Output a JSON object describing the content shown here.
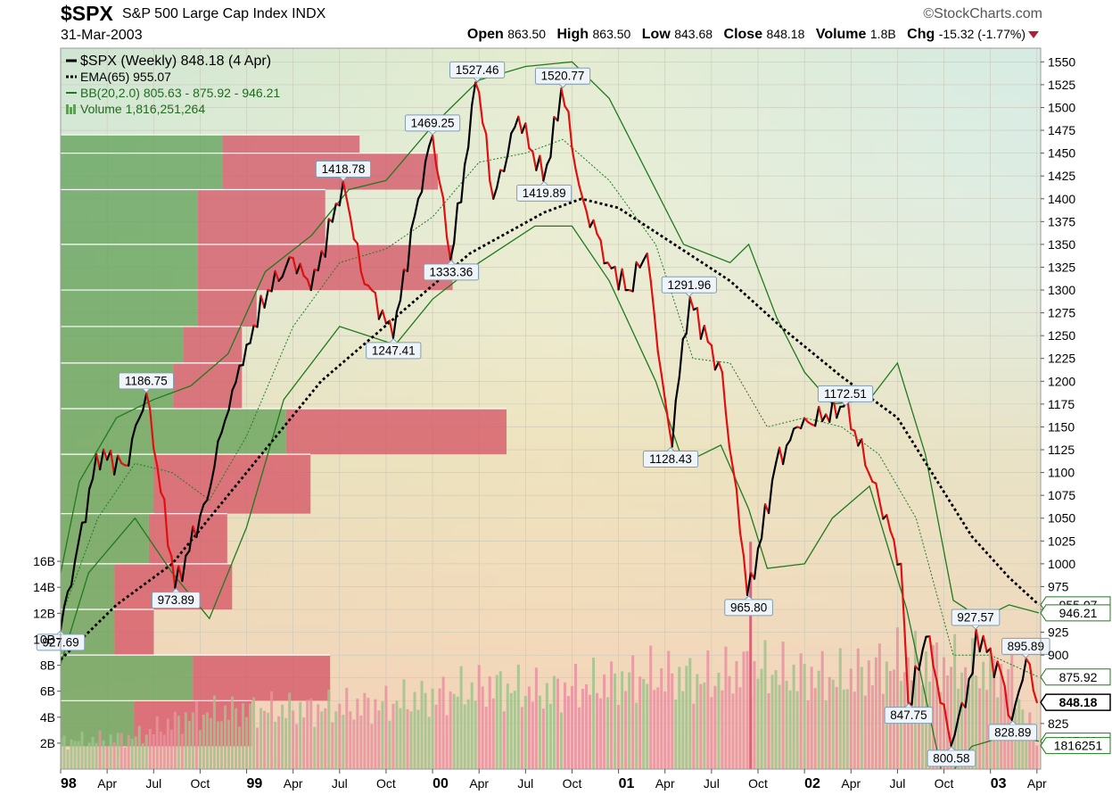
{
  "header": {
    "symbol": "$SPX",
    "name": "S&P 500 Large Cap Index",
    "exchange": "INDX",
    "date": "31-Mar-2003",
    "brand": "©StockCharts.com",
    "open_label": "Open",
    "open": "863.50",
    "high_label": "High",
    "high": "863.50",
    "low_label": "Low",
    "low": "843.68",
    "close_label": "Close",
    "close": "848.18",
    "volume_label": "Volume",
    "volume": "1.8B",
    "chg_label": "Chg",
    "chg": "-15.32 (-1.77%)"
  },
  "legend": [
    "$SPX (Weekly) 848.18 (4 Apr)",
    "EMA(65) 955.07",
    "BB(20,2.0) 805.63 - 875.92 - 946.21",
    "Volume 1,816,251,264"
  ],
  "colors": {
    "up": "#000000",
    "down": "#e01010",
    "ema": "#000000",
    "bands": "#1f7a1f",
    "vbp_up": "#5f9f55",
    "vbp_down": "#d45063",
    "bg_top_left": "#c8e2cc",
    "bg_top_right": "#d5e8de",
    "bg_bottom": "#f5d5b5"
  },
  "chart_data": {
    "type": "line",
    "title": "$SPX S&P 500 Large Cap Index (Weekly)",
    "y_axis": {
      "min": 775,
      "max": 1565,
      "ticks": [
        825,
        850,
        875,
        900,
        925,
        950,
        975,
        1000,
        1025,
        1050,
        1075,
        1100,
        1125,
        1150,
        1175,
        1200,
        1225,
        1250,
        1275,
        1300,
        1325,
        1350,
        1375,
        1400,
        1425,
        1450,
        1475,
        1500,
        1525,
        1550
      ],
      "labels": [
        "825",
        "850",
        "875",
        "900",
        "925",
        "950",
        "975",
        "1000",
        "1025",
        "1050",
        "1075",
        "1100",
        "1125",
        "1150",
        "1175",
        "1200",
        "1225",
        "1250",
        "1275",
        "1300",
        "1325",
        "1350",
        "1375",
        "1400",
        "1425",
        "1450",
        "1475",
        "1500",
        "1525",
        "1550"
      ]
    },
    "volume_axis": {
      "min": 0,
      "max": 18,
      "ticks": [
        2,
        4,
        6,
        8,
        10,
        12,
        14,
        16
      ],
      "labels": [
        "2B",
        "4B",
        "6B",
        "8B",
        "10B",
        "12B",
        "14B",
        "16B"
      ]
    },
    "x_axis": {
      "start": 1998.0,
      "end": 2003.27,
      "ticks": [
        {
          "x": 1998.0,
          "label": "98",
          "bold": true
        },
        {
          "x": 1998.25,
          "label": "Apr"
        },
        {
          "x": 1998.5,
          "label": "Jul"
        },
        {
          "x": 1998.75,
          "label": "Oct"
        },
        {
          "x": 1999.0,
          "label": "99",
          "bold": true
        },
        {
          "x": 1999.25,
          "label": "Apr"
        },
        {
          "x": 1999.5,
          "label": "Jul"
        },
        {
          "x": 1999.75,
          "label": "Oct"
        },
        {
          "x": 2000.0,
          "label": "00",
          "bold": true
        },
        {
          "x": 2000.25,
          "label": "Apr"
        },
        {
          "x": 2000.5,
          "label": "Jul"
        },
        {
          "x": 2000.75,
          "label": "Oct"
        },
        {
          "x": 2001.0,
          "label": "01",
          "bold": true
        },
        {
          "x": 2001.25,
          "label": "Apr"
        },
        {
          "x": 2001.5,
          "label": "Jul"
        },
        {
          "x": 2001.75,
          "label": "Oct"
        },
        {
          "x": 2002.0,
          "label": "02",
          "bold": true
        },
        {
          "x": 2002.25,
          "label": "Apr"
        },
        {
          "x": 2002.5,
          "label": "Jul"
        },
        {
          "x": 2002.75,
          "label": "Oct"
        },
        {
          "x": 2003.0,
          "label": "03",
          "bold": true
        },
        {
          "x": 2003.25,
          "label": "Apr"
        }
      ]
    },
    "price_pivots": [
      [
        1998.0,
        927.69
      ],
      [
        1998.12,
        1045
      ],
      [
        1998.2,
        1120
      ],
      [
        1998.35,
        1108
      ],
      [
        1998.46,
        1186.75
      ],
      [
        1998.62,
        973.89
      ],
      [
        1998.78,
        1070
      ],
      [
        1998.92,
        1190
      ],
      [
        1999.0,
        1240
      ],
      [
        1999.12,
        1300
      ],
      [
        1999.25,
        1335
      ],
      [
        1999.35,
        1300
      ],
      [
        1999.52,
        1418.78
      ],
      [
        1999.62,
        1320
      ],
      [
        1999.79,
        1247.41
      ],
      [
        1999.92,
        1400
      ],
      [
        2000.0,
        1469.25
      ],
      [
        2000.1,
        1333.36
      ],
      [
        2000.24,
        1527.46
      ],
      [
        2000.33,
        1400
      ],
      [
        2000.46,
        1490
      ],
      [
        2000.6,
        1419.89
      ],
      [
        2000.7,
        1520.77
      ],
      [
        2000.8,
        1400
      ],
      [
        2000.95,
        1330
      ],
      [
        2001.05,
        1300
      ],
      [
        2001.15,
        1340
      ],
      [
        2001.28,
        1128.43
      ],
      [
        2001.38,
        1291.96
      ],
      [
        2001.55,
        1210
      ],
      [
        2001.7,
        965.8
      ],
      [
        2001.85,
        1110
      ],
      [
        2001.97,
        1150
      ],
      [
        2002.22,
        1172.51
      ],
      [
        2002.37,
        1090
      ],
      [
        2002.52,
        1000
      ],
      [
        2002.56,
        847.75
      ],
      [
        2002.66,
        920
      ],
      [
        2002.79,
        800.58
      ],
      [
        2002.9,
        880
      ],
      [
        2002.92,
        927.57
      ],
      [
        2003.05,
        880
      ],
      [
        2003.12,
        828.89
      ],
      [
        2003.19,
        895.89
      ],
      [
        2003.26,
        848.18
      ]
    ],
    "ema65": [
      [
        1998.0,
        895
      ],
      [
        1998.3,
        955
      ],
      [
        1998.6,
        1000
      ],
      [
        1999.0,
        1100
      ],
      [
        1999.4,
        1200
      ],
      [
        1999.8,
        1270
      ],
      [
        2000.2,
        1340
      ],
      [
        2000.6,
        1385
      ],
      [
        2000.8,
        1400
      ],
      [
        2001.0,
        1390
      ],
      [
        2001.3,
        1350
      ],
      [
        2001.6,
        1310
      ],
      [
        2001.9,
        1255
      ],
      [
        2002.2,
        1205
      ],
      [
        2002.5,
        1160
      ],
      [
        2002.7,
        1095
      ],
      [
        2002.9,
        1030
      ],
      [
        2003.1,
        985
      ],
      [
        2003.26,
        955.07
      ]
    ],
    "bb_upper": [
      [
        1998.0,
        990
      ],
      [
        1998.1,
        1090
      ],
      [
        1998.3,
        1160
      ],
      [
        1998.5,
        1180
      ],
      [
        1998.7,
        1195
      ],
      [
        1998.9,
        1230
      ],
      [
        1999.1,
        1320
      ],
      [
        1999.35,
        1360
      ],
      [
        1999.55,
        1410
      ],
      [
        1999.75,
        1420
      ],
      [
        2000.0,
        1480
      ],
      [
        2000.25,
        1530
      ],
      [
        2000.5,
        1545
      ],
      [
        2000.75,
        1550
      ],
      [
        2000.95,
        1510
      ],
      [
        2001.15,
        1430
      ],
      [
        2001.35,
        1350
      ],
      [
        2001.6,
        1330
      ],
      [
        2001.7,
        1350
      ],
      [
        2001.85,
        1270
      ],
      [
        2002.0,
        1210
      ],
      [
        2002.15,
        1175
      ],
      [
        2002.35,
        1180
      ],
      [
        2002.5,
        1220
      ],
      [
        2002.65,
        1120
      ],
      [
        2002.8,
        960
      ],
      [
        2002.95,
        940
      ],
      [
        2003.1,
        955
      ],
      [
        2003.26,
        946.21
      ]
    ],
    "bb_mid": [
      [
        1998.0,
        940
      ],
      [
        1998.2,
        1050
      ],
      [
        1998.4,
        1110
      ],
      [
        1998.6,
        1100
      ],
      [
        1998.8,
        1070
      ],
      [
        1999.0,
        1140
      ],
      [
        1999.25,
        1260
      ],
      [
        1999.5,
        1330
      ],
      [
        1999.75,
        1345
      ],
      [
        2000.0,
        1380
      ],
      [
        2000.25,
        1440
      ],
      [
        2000.5,
        1450
      ],
      [
        2000.7,
        1465
      ],
      [
        2000.95,
        1420
      ],
      [
        2001.2,
        1350
      ],
      [
        2001.4,
        1225
      ],
      [
        2001.6,
        1220
      ],
      [
        2001.8,
        1150
      ],
      [
        2002.0,
        1160
      ],
      [
        2002.2,
        1150
      ],
      [
        2002.4,
        1120
      ],
      [
        2002.6,
        1050
      ],
      [
        2002.8,
        900
      ],
      [
        2003.0,
        900
      ],
      [
        2003.26,
        875.92
      ]
    ],
    "bb_lower": [
      [
        1998.0,
        890
      ],
      [
        1998.15,
        990
      ],
      [
        1998.4,
        1050
      ],
      [
        1998.6,
        990
      ],
      [
        1998.8,
        940
      ],
      [
        1999.0,
        1040
      ],
      [
        1999.2,
        1180
      ],
      [
        1999.5,
        1260
      ],
      [
        1999.8,
        1240
      ],
      [
        2000.0,
        1290
      ],
      [
        2000.25,
        1330
      ],
      [
        2000.55,
        1370
      ],
      [
        2000.75,
        1370
      ],
      [
        2000.95,
        1310
      ],
      [
        2001.2,
        1200
      ],
      [
        2001.35,
        1110
      ],
      [
        2001.55,
        1130
      ],
      [
        2001.7,
        1060
      ],
      [
        2001.8,
        995
      ],
      [
        2002.0,
        1000
      ],
      [
        2002.15,
        1050
      ],
      [
        2002.35,
        1085
      ],
      [
        2002.55,
        950
      ],
      [
        2002.75,
        760
      ],
      [
        2002.9,
        800
      ],
      [
        2003.1,
        812
      ],
      [
        2003.26,
        805.63
      ]
    ],
    "volume_by_price": [
      {
        "low": 1450,
        "high": 1470,
        "up": 0.165,
        "down": 0.14
      },
      {
        "low": 1410,
        "high": 1450,
        "up": 0.165,
        "down": 0.22
      },
      {
        "low": 1350,
        "high": 1410,
        "up": 0.14,
        "down": 0.13
      },
      {
        "low": 1300,
        "high": 1350,
        "up": 0.14,
        "down": 0.26
      },
      {
        "low": 1260,
        "high": 1300,
        "up": 0.14,
        "down": 0.06
      },
      {
        "low": 1220,
        "high": 1260,
        "up": 0.125,
        "down": 0.06
      },
      {
        "low": 1170,
        "high": 1220,
        "up": 0.115,
        "down": 0.07
      },
      {
        "low": 1120,
        "high": 1170,
        "up": 0.23,
        "down": 0.225
      },
      {
        "low": 1055,
        "high": 1120,
        "up": 0.095,
        "down": 0.16
      },
      {
        "low": 1000,
        "high": 1055,
        "up": 0.09,
        "down": 0.08
      },
      {
        "low": 950,
        "high": 1000,
        "up": 0.055,
        "down": 0.12
      },
      {
        "low": 900,
        "high": 950,
        "up": 0.055,
        "down": 0.04
      },
      {
        "low": 850,
        "high": 900,
        "up": 0.135,
        "down": 0.14
      },
      {
        "low": 800,
        "high": 850,
        "up": 0.075,
        "down": 0.12
      }
    ],
    "volume": [
      [
        1998.0,
        2.6
      ],
      [
        1998.4,
        3.0
      ],
      [
        1998.7,
        5.0
      ],
      [
        1998.95,
        5.5
      ],
      [
        1999.3,
        5.6
      ],
      [
        1999.7,
        6.0
      ],
      [
        2000.0,
        6.8
      ],
      [
        2000.3,
        7.8
      ],
      [
        2000.6,
        7.2
      ],
      [
        2000.9,
        8.0
      ],
      [
        2001.2,
        8.8
      ],
      [
        2001.5,
        8.4
      ],
      [
        2001.7,
        9.5
      ],
      [
        2001.9,
        9.0
      ],
      [
        2002.2,
        8.5
      ],
      [
        2002.5,
        10.0
      ],
      [
        2002.7,
        10.0
      ],
      [
        2002.9,
        9.3
      ],
      [
        2003.1,
        9.0
      ],
      [
        2003.26,
        1.82
      ]
    ],
    "volume_spike": {
      "x": 2001.71,
      "value": 17.5
    },
    "price_annotations": [
      {
        "x": 1998.0,
        "value": 927.69,
        "label": "927.69",
        "pos": "below"
      },
      {
        "x": 1998.46,
        "value": 1186.75,
        "label": "1186.75",
        "pos": "above"
      },
      {
        "x": 1998.62,
        "value": 973.89,
        "label": "973.89",
        "pos": "below"
      },
      {
        "x": 1999.52,
        "value": 1418.78,
        "label": "1418.78",
        "pos": "above"
      },
      {
        "x": 1999.79,
        "value": 1247.41,
        "label": "1247.41",
        "pos": "below"
      },
      {
        "x": 2000.0,
        "value": 1469.25,
        "label": "1469.25",
        "pos": "above"
      },
      {
        "x": 2000.1,
        "value": 1333.36,
        "label": "1333.36",
        "pos": "below"
      },
      {
        "x": 2000.24,
        "value": 1527.46,
        "label": "1527.46",
        "pos": "above"
      },
      {
        "x": 2000.6,
        "value": 1419.89,
        "label": "1419.89",
        "pos": "below"
      },
      {
        "x": 2000.7,
        "value": 1520.77,
        "label": "1520.77",
        "pos": "above"
      },
      {
        "x": 2001.28,
        "value": 1128.43,
        "label": "1128.43",
        "pos": "below"
      },
      {
        "x": 2001.38,
        "value": 1291.96,
        "label": "1291.96",
        "pos": "above"
      },
      {
        "x": 2001.7,
        "value": 965.8,
        "label": "965.80",
        "pos": "below"
      },
      {
        "x": 2002.22,
        "value": 1172.51,
        "label": "1172.51",
        "pos": "above"
      },
      {
        "x": 2002.56,
        "value": 847.75,
        "label": "847.75",
        "pos": "below"
      },
      {
        "x": 2002.79,
        "value": 800.58,
        "label": "800.58",
        "pos": "below"
      },
      {
        "x": 2002.92,
        "value": 927.57,
        "label": "927.57",
        "pos": "above"
      },
      {
        "x": 2003.12,
        "value": 828.89,
        "label": "828.89",
        "pos": "below"
      },
      {
        "x": 2003.19,
        "value": 895.89,
        "label": "895.89",
        "pos": "above"
      }
    ],
    "right_tags": [
      {
        "value": 955.07,
        "label": "955.07",
        "color": "#1f7a1f",
        "bold": false
      },
      {
        "value": 946.21,
        "label": "946.21",
        "color": "#1f7a1f",
        "bold": false
      },
      {
        "value": 875.92,
        "label": "875.92",
        "color": "#1f7a1f",
        "bold": false
      },
      {
        "value": 848.18,
        "label": "848.18",
        "color": "#000000",
        "bold": true
      },
      {
        "value": 805.63,
        "label": "805.63",
        "color": "#1f7a1f",
        "bold": false
      },
      {
        "value": 1.816,
        "label": "1816251",
        "color": "#1f7a1f",
        "bold": false,
        "axis": "volume"
      }
    ]
  }
}
